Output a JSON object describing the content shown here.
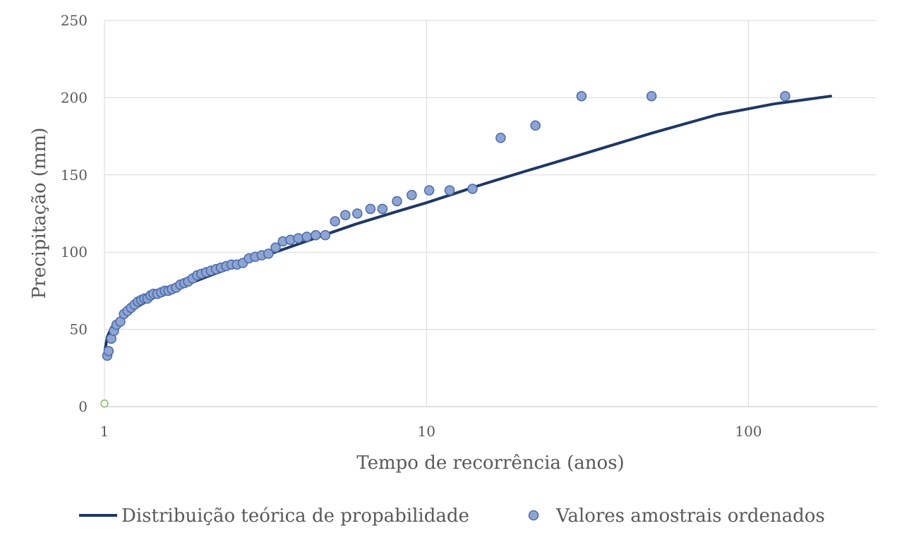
{
  "chart_data": {
    "type": "scatter",
    "title": "",
    "xlabel": "Tempo de recorrência (anos)",
    "ylabel": "Precipitação (mm)",
    "x_scale": "log",
    "xlim": [
      1,
      250
    ],
    "ylim": [
      0,
      250
    ],
    "x_ticks": [
      1,
      10,
      100
    ],
    "x_tick_labels": [
      "1",
      "10",
      "100"
    ],
    "y_ticks": [
      0,
      50,
      100,
      150,
      200,
      250
    ],
    "y_tick_labels": [
      "0",
      "50",
      "100",
      "150",
      "200",
      "250"
    ],
    "grid": true,
    "legend_position": "bottom",
    "series": [
      {
        "name": "Distribuição teórica de propabilidade",
        "kind": "line",
        "color": "#1f3864",
        "x": [
          1.005,
          1.02,
          1.05,
          1.1,
          1.2,
          1.35,
          1.5,
          1.8,
          2.2,
          2.8,
          3.5,
          4.5,
          6,
          8,
          10,
          15,
          20,
          30,
          50,
          80,
          120,
          180
        ],
        "y": [
          37,
          45,
          51,
          56,
          62,
          68,
          73,
          79,
          86,
          94,
          101,
          109,
          118,
          126,
          132,
          144,
          152,
          163,
          177,
          189,
          196,
          201
        ]
      },
      {
        "name": "Valores amostrais ordenados",
        "kind": "scatter",
        "color": "#8ea4d2",
        "edge_color": "#4a6aa8",
        "x": [
          1.02,
          1.03,
          1.05,
          1.07,
          1.09,
          1.12,
          1.15,
          1.18,
          1.21,
          1.24,
          1.27,
          1.3,
          1.33,
          1.36,
          1.39,
          1.42,
          1.46,
          1.5,
          1.54,
          1.58,
          1.62,
          1.67,
          1.72,
          1.77,
          1.82,
          1.88,
          1.94,
          2.0,
          2.07,
          2.14,
          2.22,
          2.3,
          2.39,
          2.48,
          2.58,
          2.69,
          2.81,
          2.94,
          3.08,
          3.23,
          3.4,
          3.58,
          3.78,
          4.0,
          4.25,
          4.53,
          4.85,
          5.2,
          5.6,
          6.1,
          6.7,
          7.3,
          8.1,
          9.0,
          10.2,
          11.8,
          13.9,
          17.0,
          21.8,
          30.3,
          50.0,
          130.0
        ],
        "y": [
          33,
          36,
          44,
          49,
          53,
          55,
          60,
          62,
          64,
          66,
          68,
          69,
          70,
          70,
          72,
          73,
          73,
          74,
          75,
          75,
          76,
          77,
          79,
          80,
          81,
          83,
          85,
          86,
          87,
          88,
          89,
          90,
          91,
          92,
          92,
          93,
          96,
          97,
          98,
          99,
          103,
          107,
          108,
          109,
          110,
          111,
          111,
          120,
          124,
          125,
          128,
          128,
          133,
          137,
          140,
          140,
          141,
          174,
          182,
          201,
          201,
          201
        ]
      },
      {
        "name": "",
        "kind": "scatter",
        "color": "#70ad47",
        "x": [
          1.0
        ],
        "y": [
          2
        ]
      }
    ]
  }
}
